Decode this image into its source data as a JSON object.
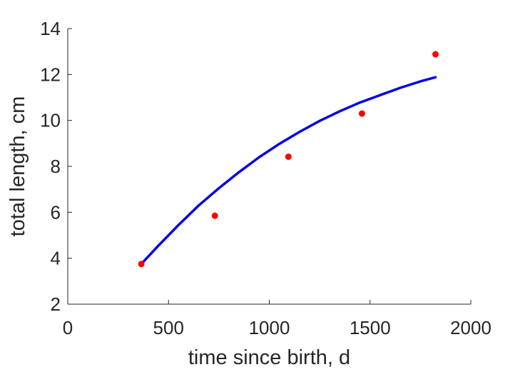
{
  "chart_data": {
    "type": "scatter",
    "xlabel": "time since birth, d",
    "ylabel": "total length, cm",
    "xlim": [
      0,
      2000
    ],
    "ylim": [
      2,
      14
    ],
    "xticks": [
      0,
      500,
      1000,
      1500,
      2000
    ],
    "yticks": [
      2,
      4,
      6,
      8,
      10,
      12,
      14
    ],
    "grid": false,
    "series": [
      {
        "kind": "points",
        "color": "#ff0000",
        "x": [
          365,
          730,
          1095,
          1460,
          1825
        ],
        "y": [
          3.75,
          5.85,
          8.42,
          10.3,
          12.88
        ]
      },
      {
        "kind": "line",
        "color": "#0000e6",
        "x": [
          365,
          450,
          550,
          650,
          750,
          850,
          950,
          1050,
          1150,
          1250,
          1350,
          1450,
          1550,
          1650,
          1750,
          1825
        ],
        "y": [
          3.75,
          4.55,
          5.45,
          6.3,
          7.05,
          7.75,
          8.4,
          8.98,
          9.5,
          9.98,
          10.4,
          10.78,
          11.1,
          11.42,
          11.7,
          11.88
        ]
      }
    ]
  }
}
